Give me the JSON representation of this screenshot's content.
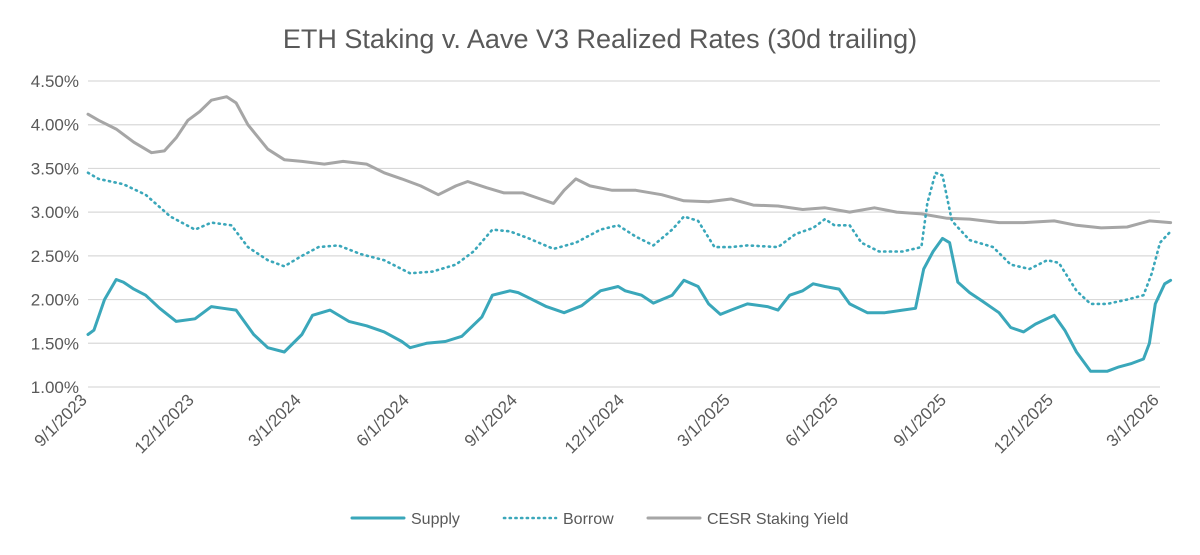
{
  "chart_data": {
    "type": "line",
    "title": "ETH Staking v. Aave V3 Realized Rates (30d trailing)",
    "xlabel": "",
    "ylabel": "",
    "x_range": [
      "2023-09-01",
      "2026-03-01"
    ],
    "ylim": [
      1.0,
      4.5
    ],
    "y_ticks": [
      1.0,
      1.5,
      2.0,
      2.5,
      3.0,
      3.5,
      4.0,
      4.5
    ],
    "y_tick_labels": [
      "1.00%",
      "1.50%",
      "2.00%",
      "2.50%",
      "3.00%",
      "3.50%",
      "4.00%",
      "4.50%"
    ],
    "x_ticks": [
      "2023-09-01",
      "2023-12-01",
      "2024-03-01",
      "2024-06-01",
      "2024-09-01",
      "2024-12-01",
      "2025-03-01",
      "2025-06-01",
      "2025-09-01",
      "2025-12-01",
      "2026-03-01"
    ],
    "x_tick_labels": [
      "9/1/2023",
      "12/1/2023",
      "3/1/2024",
      "6/1/2024",
      "9/1/2024",
      "12/1/2024",
      "3/1/2025",
      "6/1/2025",
      "9/1/2025",
      "12/1/2025",
      "3/1/2026"
    ],
    "grid": true,
    "legend_position": "bottom",
    "series": [
      {
        "name": "Supply",
        "color": "#3AA7BA",
        "style": "solid",
        "points": [
          [
            "2023-09-01",
            1.6
          ],
          [
            "2023-09-06",
            1.65
          ],
          [
            "2023-09-15",
            2.0
          ],
          [
            "2023-09-25",
            2.23
          ],
          [
            "2023-10-01",
            2.2
          ],
          [
            "2023-10-10",
            2.12
          ],
          [
            "2023-10-20",
            2.05
          ],
          [
            "2023-11-01",
            1.9
          ],
          [
            "2023-11-15",
            1.75
          ],
          [
            "2023-12-01",
            1.78
          ],
          [
            "2023-12-15",
            1.92
          ],
          [
            "2023-12-25",
            1.9
          ],
          [
            "2024-01-05",
            1.88
          ],
          [
            "2024-01-20",
            1.6
          ],
          [
            "2024-02-01",
            1.45
          ],
          [
            "2024-02-15",
            1.4
          ],
          [
            "2024-03-01",
            1.6
          ],
          [
            "2024-03-10",
            1.82
          ],
          [
            "2024-03-25",
            1.88
          ],
          [
            "2024-04-10",
            1.75
          ],
          [
            "2024-04-25",
            1.7
          ],
          [
            "2024-05-10",
            1.63
          ],
          [
            "2024-05-25",
            1.52
          ],
          [
            "2024-06-01",
            1.45
          ],
          [
            "2024-06-15",
            1.5
          ],
          [
            "2024-07-01",
            1.52
          ],
          [
            "2024-07-15",
            1.58
          ],
          [
            "2024-08-01",
            1.8
          ],
          [
            "2024-08-10",
            2.05
          ],
          [
            "2024-08-25",
            2.1
          ],
          [
            "2024-09-01",
            2.08
          ],
          [
            "2024-09-10",
            2.02
          ],
          [
            "2024-09-25",
            1.92
          ],
          [
            "2024-10-10",
            1.85
          ],
          [
            "2024-10-25",
            1.93
          ],
          [
            "2024-11-10",
            2.1
          ],
          [
            "2024-11-25",
            2.15
          ],
          [
            "2024-12-01",
            2.1
          ],
          [
            "2024-12-15",
            2.05
          ],
          [
            "2024-12-25",
            1.96
          ],
          [
            "2025-01-10",
            2.05
          ],
          [
            "2025-01-20",
            2.22
          ],
          [
            "2025-02-01",
            2.15
          ],
          [
            "2025-02-10",
            1.95
          ],
          [
            "2025-02-20",
            1.83
          ],
          [
            "2025-03-01",
            1.88
          ],
          [
            "2025-03-15",
            1.95
          ],
          [
            "2025-04-01",
            1.92
          ],
          [
            "2025-04-10",
            1.88
          ],
          [
            "2025-04-20",
            2.05
          ],
          [
            "2025-05-01",
            2.1
          ],
          [
            "2025-05-10",
            2.18
          ],
          [
            "2025-05-20",
            2.15
          ],
          [
            "2025-06-01",
            2.12
          ],
          [
            "2025-06-10",
            1.95
          ],
          [
            "2025-06-25",
            1.85
          ],
          [
            "2025-07-10",
            1.85
          ],
          [
            "2025-07-25",
            1.88
          ],
          [
            "2025-08-05",
            1.9
          ],
          [
            "2025-08-12",
            2.35
          ],
          [
            "2025-08-20",
            2.55
          ],
          [
            "2025-08-28",
            2.7
          ],
          [
            "2025-09-03",
            2.65
          ],
          [
            "2025-09-10",
            2.2
          ],
          [
            "2025-09-20",
            2.08
          ],
          [
            "2025-10-01",
            1.98
          ],
          [
            "2025-10-15",
            1.85
          ],
          [
            "2025-10-25",
            1.68
          ],
          [
            "2025-11-05",
            1.63
          ],
          [
            "2025-11-15",
            1.72
          ],
          [
            "2025-12-01",
            1.82
          ],
          [
            "2025-12-10",
            1.65
          ],
          [
            "2025-12-20",
            1.4
          ],
          [
            "2026-01-01",
            1.18
          ],
          [
            "2026-01-15",
            1.18
          ],
          [
            "2026-01-25",
            1.23
          ],
          [
            "2026-02-05",
            1.27
          ],
          [
            "2026-02-15",
            1.32
          ],
          [
            "2026-02-20",
            1.5
          ],
          [
            "2026-02-25",
            1.95
          ],
          [
            "2026-03-05",
            2.18
          ],
          [
            "2026-03-10",
            2.22
          ]
        ]
      },
      {
        "name": "Borrow",
        "color": "#3AA7BA",
        "style": "dotted",
        "points": [
          [
            "2023-09-01",
            3.45
          ],
          [
            "2023-09-10",
            3.38
          ],
          [
            "2023-10-01",
            3.32
          ],
          [
            "2023-10-20",
            3.2
          ],
          [
            "2023-11-10",
            2.95
          ],
          [
            "2023-12-01",
            2.8
          ],
          [
            "2023-12-15",
            2.88
          ],
          [
            "2024-01-01",
            2.85
          ],
          [
            "2024-01-15",
            2.6
          ],
          [
            "2024-02-01",
            2.45
          ],
          [
            "2024-02-15",
            2.38
          ],
          [
            "2024-03-01",
            2.5
          ],
          [
            "2024-03-15",
            2.6
          ],
          [
            "2024-04-01",
            2.62
          ],
          [
            "2024-04-20",
            2.52
          ],
          [
            "2024-05-10",
            2.45
          ],
          [
            "2024-06-01",
            2.3
          ],
          [
            "2024-06-20",
            2.32
          ],
          [
            "2024-07-10",
            2.4
          ],
          [
            "2024-07-25",
            2.55
          ],
          [
            "2024-08-10",
            2.8
          ],
          [
            "2024-08-25",
            2.78
          ],
          [
            "2024-09-10",
            2.7
          ],
          [
            "2024-10-01",
            2.58
          ],
          [
            "2024-10-20",
            2.65
          ],
          [
            "2024-11-10",
            2.8
          ],
          [
            "2024-11-25",
            2.85
          ],
          [
            "2024-12-10",
            2.72
          ],
          [
            "2024-12-25",
            2.62
          ],
          [
            "2025-01-10",
            2.8
          ],
          [
            "2025-01-20",
            2.95
          ],
          [
            "2025-02-01",
            2.9
          ],
          [
            "2025-02-15",
            2.6
          ],
          [
            "2025-03-01",
            2.6
          ],
          [
            "2025-03-15",
            2.62
          ],
          [
            "2025-04-10",
            2.6
          ],
          [
            "2025-04-25",
            2.75
          ],
          [
            "2025-05-10",
            2.82
          ],
          [
            "2025-05-20",
            2.92
          ],
          [
            "2025-05-28",
            2.85
          ],
          [
            "2025-06-10",
            2.85
          ],
          [
            "2025-06-20",
            2.65
          ],
          [
            "2025-07-05",
            2.55
          ],
          [
            "2025-07-25",
            2.55
          ],
          [
            "2025-08-10",
            2.6
          ],
          [
            "2025-08-15",
            3.1
          ],
          [
            "2025-08-22",
            3.45
          ],
          [
            "2025-08-28",
            3.42
          ],
          [
            "2025-09-05",
            2.9
          ],
          [
            "2025-09-20",
            2.68
          ],
          [
            "2025-10-10",
            2.6
          ],
          [
            "2025-10-25",
            2.4
          ],
          [
            "2025-11-10",
            2.35
          ],
          [
            "2025-11-25",
            2.45
          ],
          [
            "2025-12-05",
            2.42
          ],
          [
            "2025-12-20",
            2.1
          ],
          [
            "2026-01-01",
            1.95
          ],
          [
            "2026-01-15",
            1.95
          ],
          [
            "2026-02-01",
            2.0
          ],
          [
            "2026-02-15",
            2.05
          ],
          [
            "2026-02-22",
            2.3
          ],
          [
            "2026-03-01",
            2.65
          ],
          [
            "2026-03-10",
            2.78
          ]
        ]
      },
      {
        "name": "CESR Staking Yield",
        "color": "#A6A6A6",
        "style": "solid",
        "points": [
          [
            "2023-09-01",
            4.12
          ],
          [
            "2023-09-10",
            4.05
          ],
          [
            "2023-09-25",
            3.95
          ],
          [
            "2023-10-10",
            3.8
          ],
          [
            "2023-10-25",
            3.68
          ],
          [
            "2023-11-05",
            3.7
          ],
          [
            "2023-11-15",
            3.85
          ],
          [
            "2023-11-25",
            4.05
          ],
          [
            "2023-12-05",
            4.15
          ],
          [
            "2023-12-15",
            4.28
          ],
          [
            "2023-12-28",
            4.32
          ],
          [
            "2024-01-05",
            4.25
          ],
          [
            "2024-01-15",
            4.0
          ],
          [
            "2024-02-01",
            3.72
          ],
          [
            "2024-02-15",
            3.6
          ],
          [
            "2024-03-01",
            3.58
          ],
          [
            "2024-03-20",
            3.55
          ],
          [
            "2024-04-05",
            3.58
          ],
          [
            "2024-04-25",
            3.55
          ],
          [
            "2024-05-10",
            3.45
          ],
          [
            "2024-05-25",
            3.38
          ],
          [
            "2024-06-10",
            3.3
          ],
          [
            "2024-06-25",
            3.2
          ],
          [
            "2024-07-10",
            3.3
          ],
          [
            "2024-07-20",
            3.35
          ],
          [
            "2024-08-05",
            3.28
          ],
          [
            "2024-08-20",
            3.22
          ],
          [
            "2024-09-05",
            3.22
          ],
          [
            "2024-09-20",
            3.15
          ],
          [
            "2024-10-01",
            3.1
          ],
          [
            "2024-10-10",
            3.25
          ],
          [
            "2024-10-20",
            3.38
          ],
          [
            "2024-11-01",
            3.3
          ],
          [
            "2024-11-20",
            3.25
          ],
          [
            "2024-12-10",
            3.25
          ],
          [
            "2025-01-01",
            3.2
          ],
          [
            "2025-01-20",
            3.13
          ],
          [
            "2025-02-10",
            3.12
          ],
          [
            "2025-03-01",
            3.15
          ],
          [
            "2025-03-20",
            3.08
          ],
          [
            "2025-04-10",
            3.07
          ],
          [
            "2025-05-01",
            3.03
          ],
          [
            "2025-05-20",
            3.05
          ],
          [
            "2025-06-10",
            3.0
          ],
          [
            "2025-07-01",
            3.05
          ],
          [
            "2025-07-20",
            3.0
          ],
          [
            "2025-08-10",
            2.98
          ],
          [
            "2025-09-01",
            2.93
          ],
          [
            "2025-09-20",
            2.92
          ],
          [
            "2025-10-15",
            2.88
          ],
          [
            "2025-11-05",
            2.88
          ],
          [
            "2025-12-01",
            2.9
          ],
          [
            "2025-12-20",
            2.85
          ],
          [
            "2026-01-10",
            2.82
          ],
          [
            "2026-02-01",
            2.83
          ],
          [
            "2026-02-20",
            2.9
          ],
          [
            "2026-03-10",
            2.88
          ]
        ]
      }
    ]
  }
}
